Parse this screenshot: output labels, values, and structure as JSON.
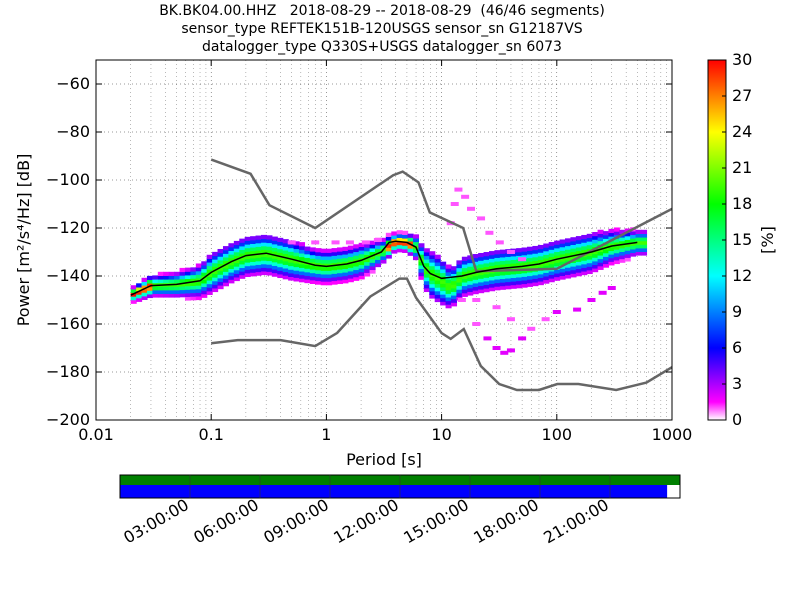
{
  "title_lines": [
    "BK.BK04.00.HHZ   2018-08-29 -- 2018-08-29  (46/46 segments)",
    "sensor_type REFTEK151B-120USGS sensor_sn G12187VS",
    "datalogger_type Q330S+USGS datalogger_sn 6073"
  ],
  "chart_data": {
    "type": "heatmap",
    "xlabel": "Period [s]",
    "ylabel": "Power [m²/s⁴/Hz] [dB]",
    "xscale": "log",
    "xlim": [
      0.01,
      1000
    ],
    "ylim": [
      -200,
      -50
    ],
    "xticks": [
      {
        "value": 0.01,
        "label": "0.01"
      },
      {
        "value": 0.1,
        "label": "0.1"
      },
      {
        "value": 1,
        "label": "1"
      },
      {
        "value": 10,
        "label": "10"
      },
      {
        "value": 100,
        "label": "100"
      },
      {
        "value": 1000,
        "label": "1000"
      }
    ],
    "yticks": [
      {
        "value": -60,
        "label": "−60"
      },
      {
        "value": -80,
        "label": "−80"
      },
      {
        "value": -100,
        "label": "−100"
      },
      {
        "value": -120,
        "label": "−120"
      },
      {
        "value": -140,
        "label": "−140"
      },
      {
        "value": -160,
        "label": "−160"
      },
      {
        "value": -180,
        "label": "−180"
      },
      {
        "value": -200,
        "label": "−200"
      }
    ],
    "grid": true,
    "colorbar": {
      "label": "[%]",
      "min": 0,
      "max": 30,
      "ticks": [
        "0",
        "3",
        "6",
        "9",
        "12",
        "15",
        "18",
        "21",
        "24",
        "27",
        "30"
      ]
    },
    "noise_models": [
      {
        "label": "",
        "x": [
          0.1,
          0.22,
          0.32,
          0.8,
          3.8,
          4.6,
          6.3,
          7.9,
          15.4,
          20,
          100,
          1000
        ],
        "y": [
          -91.5,
          -97.4,
          -110.5,
          -120,
          -98,
          -96.5,
          -101,
          -113.5,
          -120,
          -138,
          -137,
          -112
        ]
      },
      {
        "label": "",
        "x": [
          0.1,
          0.17,
          0.4,
          0.8,
          1.24,
          2.4,
          4.3,
          5,
          6,
          10,
          12,
          15.6,
          21.9,
          31.6,
          45,
          70,
          101,
          154,
          328,
          600,
          1000
        ],
        "y": [
          -168,
          -166.7,
          -166.7,
          -169.2,
          -163.7,
          -148.6,
          -141.1,
          -141.1,
          -149,
          -163.8,
          -166.2,
          -162.1,
          -177.5,
          -185,
          -187.5,
          -187.5,
          -185,
          -185,
          -187.5,
          -184.4,
          -178
        ]
      }
    ],
    "mode_line": {
      "x": [
        0.02,
        0.03,
        0.05,
        0.08,
        0.1,
        0.15,
        0.2,
        0.3,
        0.5,
        0.8,
        1,
        1.5,
        2,
        3,
        3.5,
        4,
        5,
        6,
        7,
        8,
        10,
        15,
        20,
        30,
        50,
        70,
        100,
        200,
        300,
        500
      ],
      "y": [
        -148,
        -144,
        -143.5,
        -142,
        -138.5,
        -134,
        -131.5,
        -130.5,
        -133,
        -135.5,
        -136,
        -135,
        -133.5,
        -130,
        -126,
        -125.5,
        -126,
        -128,
        -136,
        -139,
        -141,
        -140,
        -138.5,
        -137,
        -136,
        -135,
        -133,
        -130,
        -127.5,
        -126
      ]
    },
    "pdf_band": {
      "x": [
        0.02,
        0.03,
        0.05,
        0.08,
        0.1,
        0.15,
        0.2,
        0.3,
        0.5,
        0.8,
        1,
        1.5,
        2,
        3,
        4,
        5,
        6,
        7,
        8,
        10,
        12,
        15,
        20,
        30,
        50,
        70,
        100,
        200,
        300,
        500,
        600
      ],
      "center": [
        -148,
        -144,
        -143.5,
        -142,
        -138.5,
        -134,
        -131.5,
        -130.5,
        -133,
        -135.5,
        -136,
        -135,
        -133.5,
        -130,
        -125.5,
        -126,
        -128,
        -136,
        -139,
        -142,
        -145,
        -140,
        -138.5,
        -137,
        -136,
        -135,
        -133,
        -130,
        -127.5,
        -126,
        -126
      ],
      "spread": [
        1.5,
        2.5,
        3,
        4,
        5,
        5,
        5,
        5,
        5,
        4,
        4,
        4,
        4,
        3,
        2,
        2,
        3,
        5,
        6,
        6,
        5,
        5,
        5,
        5,
        5,
        5,
        5,
        5,
        4,
        3,
        3
      ]
    },
    "outliers": [
      {
        "x": 12,
        "y": -118,
        "pct": 1
      },
      {
        "x": 13,
        "y": -110,
        "pct": 1
      },
      {
        "x": 14,
        "y": -104,
        "pct": 1
      },
      {
        "x": 16,
        "y": -107,
        "pct": 1
      },
      {
        "x": 18,
        "y": -112,
        "pct": 1
      },
      {
        "x": 22,
        "y": -116,
        "pct": 1
      },
      {
        "x": 26,
        "y": -122,
        "pct": 1
      },
      {
        "x": 32,
        "y": -126,
        "pct": 1
      },
      {
        "x": 40,
        "y": -130,
        "pct": 1
      },
      {
        "x": 50,
        "y": -133,
        "pct": 1
      },
      {
        "x": 15,
        "y": -150,
        "pct": 1
      },
      {
        "x": 20,
        "y": -160,
        "pct": 1
      },
      {
        "x": 25,
        "y": -166,
        "pct": 2
      },
      {
        "x": 30,
        "y": -170,
        "pct": 2
      },
      {
        "x": 35,
        "y": -172,
        "pct": 2
      },
      {
        "x": 40,
        "y": -171,
        "pct": 2
      },
      {
        "x": 50,
        "y": -166,
        "pct": 2
      },
      {
        "x": 60,
        "y": -162,
        "pct": 1
      },
      {
        "x": 80,
        "y": -158,
        "pct": 1
      },
      {
        "x": 100,
        "y": -155,
        "pct": 2
      },
      {
        "x": 150,
        "y": -154,
        "pct": 2
      },
      {
        "x": 200,
        "y": -150,
        "pct": 2
      },
      {
        "x": 250,
        "y": -147,
        "pct": 2
      },
      {
        "x": 300,
        "y": -145,
        "pct": 2
      },
      {
        "x": 20,
        "y": -150,
        "pct": 1
      },
      {
        "x": 30,
        "y": -153,
        "pct": 1
      },
      {
        "x": 40,
        "y": -158,
        "pct": 1
      },
      {
        "x": 0.5,
        "y": -126,
        "pct": 1
      },
      {
        "x": 0.8,
        "y": -126,
        "pct": 1
      },
      {
        "x": 1.2,
        "y": -126,
        "pct": 1
      },
      {
        "x": 1.6,
        "y": -126,
        "pct": 1
      },
      {
        "x": 2.2,
        "y": -126,
        "pct": 1
      },
      {
        "x": 2.8,
        "y": -125,
        "pct": 1
      }
    ]
  },
  "timeline": {
    "ticks": [
      "03:00:00",
      "06:00:00",
      "09:00:00",
      "12:00:00",
      "15:00:00",
      "18:00:00",
      "21:00:00"
    ],
    "tick_hours": [
      3,
      6,
      9,
      12,
      15,
      18,
      21
    ],
    "span_hours": [
      0,
      24
    ],
    "coverage_fraction": 1.0,
    "data_fraction": 0.977,
    "colors": {
      "coverage": "#008000",
      "data": "#0000ff"
    }
  }
}
